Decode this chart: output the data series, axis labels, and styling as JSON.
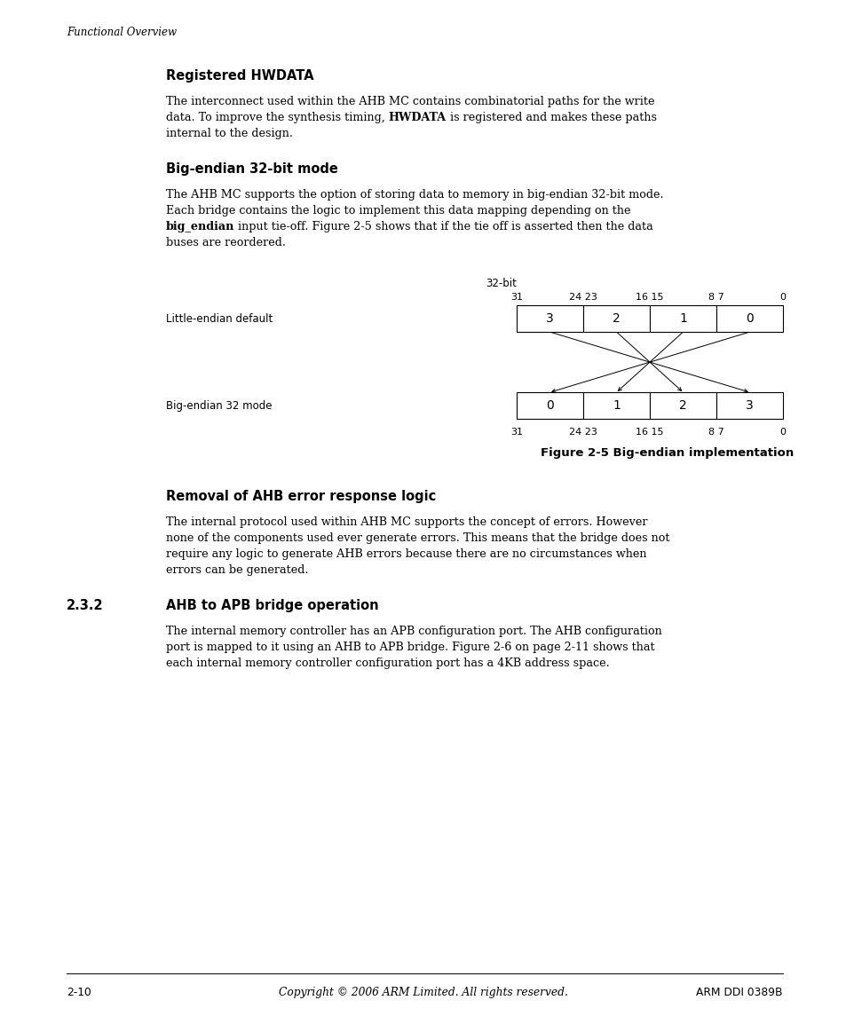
{
  "bg_color": "#ffffff",
  "page_width": 9.54,
  "page_height": 11.45,
  "header_italic": "Functional Overview",
  "section1_title": "Registered HWDATA",
  "section1_lines": [
    [
      "n:The interconnect used within the AHB MC contains combinatorial paths for the write"
    ],
    [
      "n:data. To improve the synthesis timing, ",
      "b:HWDATA",
      "n: is registered and makes these paths"
    ],
    [
      "n:internal to the design."
    ]
  ],
  "section2_title": "Big-endian 32-bit mode",
  "section2_lines": [
    [
      "n:The AHB MC supports the option of storing data to memory in big-endian 32-bit mode."
    ],
    [
      "n:Each bridge contains the logic to implement this data mapping depending on the"
    ],
    [
      "b:big_endian",
      "n: input tie-off. Figure 2-5 shows that if the tie off is asserted then the data"
    ],
    [
      "n:buses are reordered."
    ]
  ],
  "diag_label": "32-bit",
  "diag_top_ticks": [
    "31",
    "24 23",
    "16 15",
    "8 7",
    "0"
  ],
  "diag_row1_label": "Little-endian default",
  "diag_row1_vals": [
    "3",
    "2",
    "1",
    "0"
  ],
  "diag_row2_label": "Big-endian 32 mode",
  "diag_row2_vals": [
    "0",
    "1",
    "2",
    "3"
  ],
  "diag_bot_ticks": [
    "31",
    "24 23",
    "16 15",
    "8 7",
    "0"
  ],
  "fig_caption": "Figure 2-5 Big-endian implementation",
  "section3_title": "Removal of AHB error response logic",
  "section3_lines": [
    [
      "n:The internal protocol used within AHB MC supports the concept of errors. However"
    ],
    [
      "n:none of the components used ever generate errors. This means that the bridge does not"
    ],
    [
      "n:require any logic to generate AHB errors because there are no circumstances when"
    ],
    [
      "n:errors can be generated."
    ]
  ],
  "section4_num": "2.3.2",
  "section4_title": "AHB to APB bridge operation",
  "section4_lines": [
    [
      "n:The internal memory controller has an APB configuration port. The AHB configuration"
    ],
    [
      "n:port is mapped to it using an AHB to APB bridge. Figure 2-6 on page 2-11 shows that"
    ],
    [
      "n:each internal memory controller configuration port has a 4KB address space."
    ]
  ],
  "footer_left": "2-10",
  "footer_center": "Copyright © 2006 ARM Limited. All rights reserved.",
  "footer_right": "ARM DDI 0389B"
}
